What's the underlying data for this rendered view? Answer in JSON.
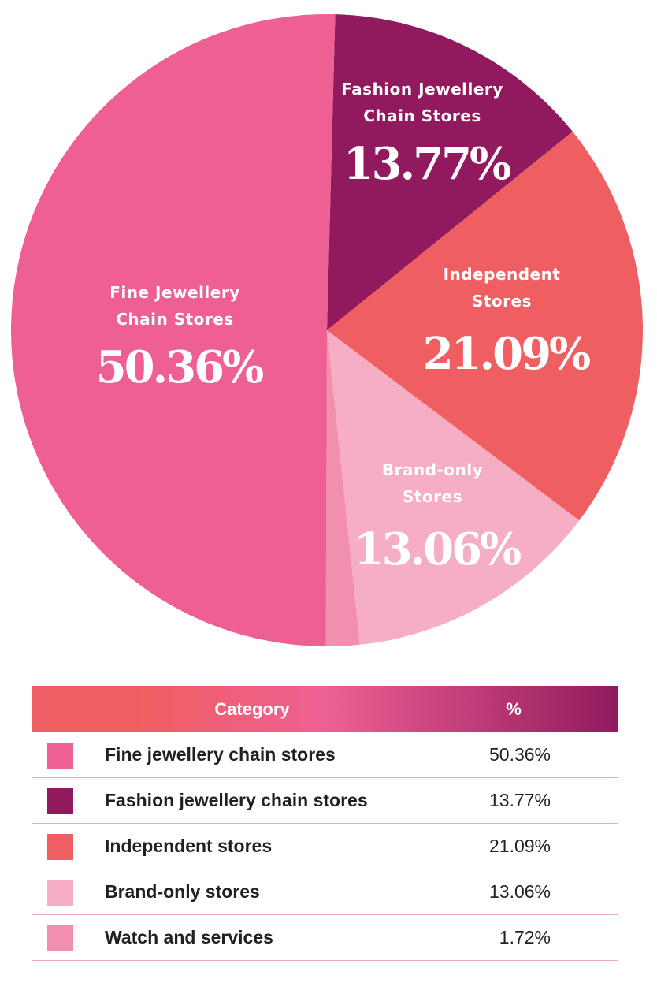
{
  "chart_data": {
    "type": "pie",
    "slices": [
      {
        "name": "Fine Jewellery Chain Stores",
        "value": 50.36,
        "display": "50.36%",
        "color": "#ee6093",
        "label_lines": [
          "Fine Jewellery",
          "Chain Stores"
        ]
      },
      {
        "name": "Fashion Jewellery Chain Stores",
        "value": 13.77,
        "display": "13.77%",
        "color": "#911a5e",
        "label_lines": [
          "Fashion Jewellery",
          "Chain Stores"
        ]
      },
      {
        "name": "Independent Stores",
        "value": 21.09,
        "display": "21.09%",
        "color": "#ef5f62",
        "label_lines": [
          "Independent",
          "Stores"
        ]
      },
      {
        "name": "Brand-only Stores",
        "value": 13.06,
        "display": "13.06%",
        "color": "#f5aec4",
        "label_lines": [
          "Brand-only",
          "Stores"
        ]
      },
      {
        "name": "Watch and services",
        "value": 1.72,
        "display": "1.72%",
        "color": "#f28eae",
        "label_lines": []
      }
    ]
  },
  "table": {
    "header": {
      "category": "Category",
      "percent": "%"
    },
    "header_gradient": [
      "#ef5f62",
      "#ee6093",
      "#911a5e"
    ],
    "rows": [
      {
        "category": "Fine jewellery chain stores",
        "percent": "50.36%",
        "color": "#ee6093"
      },
      {
        "category": "Fashion jewellery chain stores",
        "percent": "13.77%",
        "color": "#911a5e"
      },
      {
        "category": "Independent stores",
        "percent": "21.09%",
        "color": "#ef5f62"
      },
      {
        "category": "Brand-only stores",
        "percent": "13.06%",
        "color": "#f5aec4"
      },
      {
        "category": "Watch and services",
        "percent": "1.72%",
        "color": "#f28eae"
      }
    ]
  }
}
